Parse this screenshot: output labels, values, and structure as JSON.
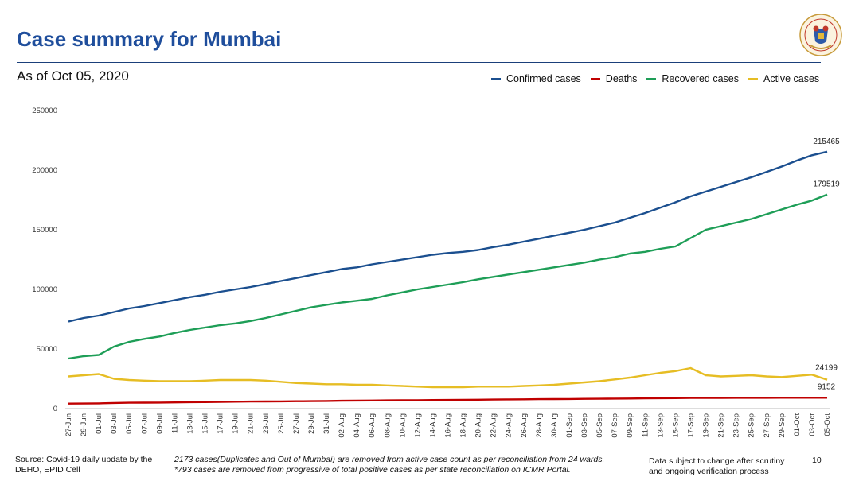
{
  "header": {
    "title": "Case summary for Mumbai",
    "subtitle": "As of Oct 05, 2020",
    "logo": "municipal-corporation-seal"
  },
  "footer": {
    "source_line1": "Source: Covid-19 daily update by the",
    "source_line2": "DEHO, EPID Cell",
    "note_line1": "2173 cases(Duplicates and Out of Mumbai) are removed from active case count as per reconciliation from 24 wards.",
    "note_line2": "*793 cases are removed from progressive of total positive cases as per state reconciliation on ICMR Portal.",
    "disclaimer_line1": "Data subject to change after scrutiny",
    "disclaimer_line2": "and ongoing verification process",
    "page_number": "10"
  },
  "chart_data": {
    "type": "line",
    "x": [
      "27-Jun",
      "29-Jun",
      "01-Jul",
      "03-Jul",
      "05-Jul",
      "07-Jul",
      "09-Jul",
      "11-Jul",
      "13-Jul",
      "15-Jul",
      "17-Jul",
      "19-Jul",
      "21-Jul",
      "23-Jul",
      "25-Jul",
      "27-Jul",
      "29-Jul",
      "31-Jul",
      "02-Aug",
      "04-Aug",
      "06-Aug",
      "08-Aug",
      "10-Aug",
      "12-Aug",
      "14-Aug",
      "16-Aug",
      "18-Aug",
      "20-Aug",
      "22-Aug",
      "24-Aug",
      "26-Aug",
      "28-Aug",
      "30-Aug",
      "01-Sep",
      "03-Sep",
      "05-Sep",
      "07-Sep",
      "09-Sep",
      "11-Sep",
      "13-Sep",
      "15-Sep",
      "17-Sep",
      "19-Sep",
      "21-Sep",
      "23-Sep",
      "25-Sep",
      "27-Sep",
      "29-Sep",
      "01-Oct",
      "03-Oct",
      "05-Oct"
    ],
    "ylim": [
      0,
      250000
    ],
    "yticks": [
      0,
      50000,
      100000,
      150000,
      200000,
      250000
    ],
    "grid": false,
    "legend_position": "top-right",
    "series": [
      {
        "name": "Confirmed cases",
        "color": "#1b4f8f",
        "end_label": "215465",
        "values": [
          73000,
          76000,
          78000,
          81000,
          84000,
          86000,
          88500,
          91000,
          93500,
          95500,
          98000,
          100000,
          102000,
          104500,
          107000,
          109500,
          112000,
          114500,
          117000,
          118500,
          121000,
          123000,
          125000,
          127000,
          129000,
          130500,
          131500,
          133000,
          135500,
          137500,
          140000,
          142500,
          145000,
          147500,
          150000,
          153000,
          156000,
          160000,
          164000,
          168500,
          173000,
          178000,
          182000,
          186000,
          190000,
          194000,
          198500,
          203000,
          208000,
          212500,
          215465
        ]
      },
      {
        "name": "Deaths",
        "color": "#c00000",
        "end_label": "",
        "values": [
          4200,
          4300,
          4400,
          4700,
          4900,
          5000,
          5100,
          5200,
          5400,
          5500,
          5600,
          5800,
          5900,
          6000,
          6100,
          6200,
          6300,
          6400,
          6600,
          6700,
          6800,
          6900,
          7000,
          7100,
          7200,
          7300,
          7400,
          7500,
          7600,
          7700,
          7800,
          7900,
          8000,
          8100,
          8200,
          8300,
          8400,
          8500,
          8600,
          8700,
          8800,
          8900,
          9000,
          9000,
          9050,
          9080,
          9100,
          9110,
          9130,
          9140,
          9152
        ]
      },
      {
        "name": "Recovered cases",
        "color": "#1e9e57",
        "end_label": "179519",
        "values": [
          42000,
          44000,
          45000,
          52000,
          56000,
          58500,
          60500,
          63500,
          66000,
          68000,
          70000,
          71500,
          73500,
          76000,
          79000,
          82000,
          85000,
          87000,
          89000,
          90500,
          92000,
          95000,
          97500,
          100000,
          102000,
          104000,
          106000,
          108500,
          110500,
          112500,
          114500,
          116500,
          118500,
          120500,
          122500,
          125000,
          127000,
          130000,
          131500,
          134000,
          136000,
          143000,
          150000,
          153000,
          156000,
          159000,
          163000,
          167000,
          171000,
          174500,
          179519
        ]
      },
      {
        "name": "Active cases",
        "color": "#e6bd24",
        "end_label": "24199",
        "values": [
          27000,
          28000,
          29000,
          25000,
          24000,
          23500,
          23000,
          23000,
          23000,
          23500,
          24000,
          24000,
          24000,
          23500,
          22500,
          21500,
          21000,
          20500,
          20500,
          20000,
          20000,
          19500,
          19000,
          18500,
          18000,
          18000,
          18000,
          18500,
          18500,
          18500,
          19000,
          19500,
          20000,
          21000,
          22000,
          23000,
          24500,
          26000,
          28000,
          30000,
          31500,
          34000,
          28000,
          27000,
          27500,
          28000,
          27000,
          26500,
          27500,
          28500,
          24199
        ]
      }
    ]
  }
}
